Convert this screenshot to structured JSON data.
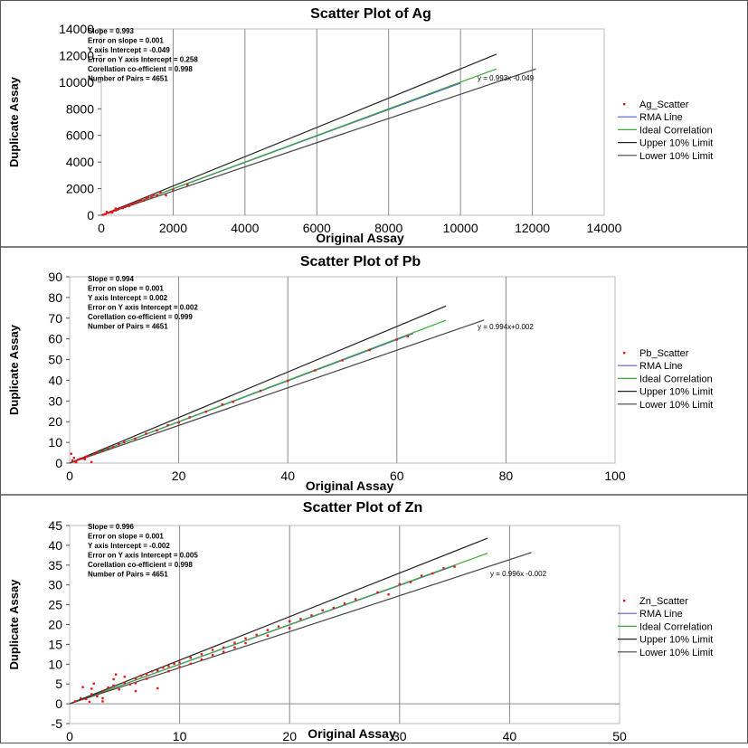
{
  "chart_data": [
    {
      "type": "scatter",
      "title": "Scatter Plot of Ag",
      "xlabel": "Original Assay",
      "ylabel": "Duplicate Assay",
      "xlim": [
        0,
        14000
      ],
      "ylim": [
        0,
        14000
      ],
      "xticks": [
        "0",
        "2000",
        "4000",
        "6000",
        "8000",
        "10000",
        "12000",
        "14000"
      ],
      "yticks": [
        "0",
        "2000",
        "4000",
        "6000",
        "8000",
        "10000",
        "12000",
        "14000"
      ],
      "grid": "vertical",
      "legend_position": "right",
      "stats": [
        "Slope = 0.993",
        "Error on slope = 0.001",
        "Y axis Intercept = -0.049",
        "Error on Y axis Intercept = 0.258",
        "Corellation co-efficient = 0.998",
        "Number of Pairs = 4651"
      ],
      "equation_label": "y = 0.993x -0.049",
      "series": [
        {
          "name": "Ag_Scatter",
          "kind": "points",
          "color": "#e8141c",
          "points": [
            [
              60,
              40
            ],
            [
              120,
              90
            ],
            [
              200,
              180
            ],
            [
              260,
              240
            ],
            [
              320,
              300
            ],
            [
              400,
              360
            ],
            [
              450,
              420
            ],
            [
              520,
              560
            ],
            [
              600,
              540
            ],
            [
              650,
              610
            ],
            [
              700,
              720
            ],
            [
              780,
              700
            ],
            [
              850,
              830
            ],
            [
              900,
              880
            ],
            [
              980,
              950
            ],
            [
              1050,
              1020
            ],
            [
              1100,
              1150
            ],
            [
              1180,
              1100
            ],
            [
              1250,
              1280
            ],
            [
              1300,
              1350
            ],
            [
              1400,
              1380
            ],
            [
              1450,
              1520
            ],
            [
              1550,
              1500
            ],
            [
              1650,
              1700
            ],
            [
              1800,
              1500
            ],
            [
              2000,
              1900
            ],
            [
              2400,
              2300
            ],
            [
              400,
              500
            ],
            [
              150,
              250
            ],
            [
              300,
              200
            ]
          ]
        },
        {
          "name": "RMA Line",
          "kind": "line",
          "color": "#5b5bd6",
          "points": [
            [
              0,
              -0.049
            ],
            [
              10000,
              9929.95
            ]
          ]
        },
        {
          "name": "Ideal Correlation",
          "kind": "line",
          "color": "#3aaa35",
          "points": [
            [
              0,
              0
            ],
            [
              11000,
              11000
            ]
          ]
        },
        {
          "name": "Upper 10% Limit",
          "kind": "line",
          "color": "#222222",
          "points": [
            [
              0,
              0
            ],
            [
              11000,
              12100
            ]
          ]
        },
        {
          "name": "Lower 10% Limit",
          "kind": "line",
          "color": "#444444",
          "points": [
            [
              0,
              0
            ],
            [
              12100,
              11000
            ]
          ]
        }
      ]
    },
    {
      "type": "scatter",
      "title": "Scatter Plot of Pb",
      "xlabel": "Original Assay",
      "ylabel": "Duplicate Assay",
      "xlim": [
        0,
        100
      ],
      "ylim": [
        0,
        90
      ],
      "xticks": [
        "0",
        "20",
        "40",
        "60",
        "80",
        "100"
      ],
      "yticks": [
        "0",
        "10",
        "20",
        "30",
        "40",
        "50",
        "60",
        "70",
        "80",
        "90"
      ],
      "grid": "vertical",
      "legend_position": "right",
      "stats": [
        "Slope = 0.994",
        "Error on slope = 0.001",
        "Y axis Intercept = 0.002",
        "Error on Y axis Intercept = 0.002",
        "Corellation co-efficient = 0.999",
        "Number of Pairs = 4651"
      ],
      "equation_label": "y = 0.994x+0.002",
      "series": [
        {
          "name": "Pb_Scatter",
          "kind": "points",
          "color": "#e8141c",
          "points": [
            [
              0.3,
              4.5
            ],
            [
              0.5,
              1.2
            ],
            [
              1,
              0.8
            ],
            [
              1.5,
              1.6
            ],
            [
              2,
              2.1
            ],
            [
              2.5,
              2.3
            ],
            [
              3,
              3.1
            ],
            [
              3.5,
              3.4
            ],
            [
              4,
              0.5
            ],
            [
              4.5,
              4.3
            ],
            [
              5,
              5.2
            ],
            [
              6,
              5.8
            ],
            [
              7,
              7.2
            ],
            [
              8,
              7.7
            ],
            [
              9,
              9.2
            ],
            [
              10,
              10.1
            ],
            [
              12,
              11.8
            ],
            [
              14,
              14.2
            ],
            [
              16,
              15.8
            ],
            [
              18,
              18.3
            ],
            [
              20,
              19.6
            ],
            [
              22,
              22.1
            ],
            [
              25,
              24.8
            ],
            [
              28,
              28.3
            ],
            [
              30,
              29.6
            ],
            [
              35,
              34.9
            ],
            [
              40,
              39.7
            ],
            [
              45,
              44.8
            ],
            [
              50,
              49.6
            ],
            [
              55,
              54.6
            ],
            [
              60,
              59.7
            ],
            [
              62,
              61.2
            ],
            [
              1.2,
              0.4
            ],
            [
              2.8,
              1.9
            ],
            [
              0.8,
              2.5
            ]
          ]
        },
        {
          "name": "RMA Line",
          "kind": "line",
          "color": "#5b5bd6",
          "points": [
            [
              0,
              0.002
            ],
            [
              63,
              62.62
            ]
          ]
        },
        {
          "name": "Ideal Correlation",
          "kind": "line",
          "color": "#3aaa35",
          "points": [
            [
              0,
              0
            ],
            [
              69,
              69
            ]
          ]
        },
        {
          "name": "Upper 10% Limit",
          "kind": "line",
          "color": "#222222",
          "points": [
            [
              0,
              0
            ],
            [
              69,
              75.9
            ]
          ]
        },
        {
          "name": "Lower 10% Limit",
          "kind": "line",
          "color": "#444444",
          "points": [
            [
              0,
              0
            ],
            [
              76,
              69.1
            ]
          ]
        }
      ]
    },
    {
      "type": "scatter",
      "title": "Scatter Plot of Zn",
      "xlabel": "Original Assay",
      "ylabel": "Duplicate Assay",
      "xlim": [
        0,
        50
      ],
      "ylim": [
        -5,
        45
      ],
      "xticks": [
        "0",
        "10",
        "20",
        "30",
        "40",
        "50"
      ],
      "yticks": [
        "-5",
        "0",
        "5",
        "10",
        "15",
        "20",
        "25",
        "30",
        "35",
        "40",
        "45"
      ],
      "grid": "vertical",
      "legend_position": "right",
      "stats": [
        "Slope = 0.996",
        "Error on slope = 0.001",
        "Y axis Intercept = -0.002",
        "Error on Y axis Intercept = 0.005",
        "Corellation co-efficient = 0.998",
        "Number of Pairs = 4651"
      ],
      "equation_label": "y = 0.996x -0.002",
      "series": [
        {
          "name": "Zn_Scatter",
          "kind": "points",
          "color": "#e8141c",
          "points": [
            [
              0.5,
              0.6
            ],
            [
              1,
              1.4
            ],
            [
              1.2,
              4.2
            ],
            [
              1.5,
              1.2
            ],
            [
              2,
              2.4
            ],
            [
              2,
              3.8
            ],
            [
              2.5,
              1.9
            ],
            [
              3,
              3.2
            ],
            [
              3,
              0.6
            ],
            [
              3.5,
              4.1
            ],
            [
              4,
              4.6
            ],
            [
              4,
              6.2
            ],
            [
              4.5,
              3.6
            ],
            [
              5,
              5.3
            ],
            [
              5,
              6.8
            ],
            [
              5.5,
              4.9
            ],
            [
              6,
              6.4
            ],
            [
              6,
              5.2
            ],
            [
              6.5,
              7.1
            ],
            [
              7,
              7.5
            ],
            [
              7,
              6.3
            ],
            [
              7.5,
              8.2
            ],
            [
              8,
              8.4
            ],
            [
              8,
              3.9
            ],
            [
              8.5,
              9.1
            ],
            [
              9,
              9.5
            ],
            [
              9,
              8.2
            ],
            [
              9.5,
              10.1
            ],
            [
              10,
              10.4
            ],
            [
              10,
              9.3
            ],
            [
              11,
              11.6
            ],
            [
              11,
              10.1
            ],
            [
              12,
              12.5
            ],
            [
              12,
              11.2
            ],
            [
              13,
              13.6
            ],
            [
              13,
              12.3
            ],
            [
              14,
              14.2
            ],
            [
              14,
              13.1
            ],
            [
              15,
              15.4
            ],
            [
              15,
              14.2
            ],
            [
              16,
              16.5
            ],
            [
              16,
              15.3
            ],
            [
              17,
              17.4
            ],
            [
              18,
              18.6
            ],
            [
              18,
              17.2
            ],
            [
              19,
              19.5
            ],
            [
              20,
              20.8
            ],
            [
              20,
              19.1
            ],
            [
              21,
              21.4
            ],
            [
              22,
              22.3
            ],
            [
              23,
              23.6
            ],
            [
              24,
              24.2
            ],
            [
              25,
              25.3
            ],
            [
              26,
              26.4
            ],
            [
              28,
              28.1
            ],
            [
              29,
              27.6
            ],
            [
              30,
              30.2
            ],
            [
              31,
              30.7
            ],
            [
              32,
              32.3
            ],
            [
              33,
              32.9
            ],
            [
              34,
              34.2
            ],
            [
              35,
              34.6
            ],
            [
              3,
              1.4
            ],
            [
              1.8,
              0.5
            ],
            [
              6,
              3.2
            ],
            [
              4.2,
              7.4
            ],
            [
              2.2,
              5.1
            ]
          ]
        },
        {
          "name": "RMA Line",
          "kind": "line",
          "color": "#5b5bd6",
          "points": [
            [
              0,
              -0.002
            ],
            [
              35,
              34.86
            ]
          ]
        },
        {
          "name": "Ideal Correlation",
          "kind": "line",
          "color": "#3aaa35",
          "points": [
            [
              0,
              0
            ],
            [
              38,
              38
            ]
          ]
        },
        {
          "name": "Upper 10% Limit",
          "kind": "line",
          "color": "#222222",
          "points": [
            [
              0,
              0
            ],
            [
              38,
              41.8
            ]
          ]
        },
        {
          "name": "Lower 10% Limit",
          "kind": "line",
          "color": "#444444",
          "points": [
            [
              0,
              0
            ],
            [
              42,
              38.2
            ]
          ]
        }
      ]
    }
  ]
}
